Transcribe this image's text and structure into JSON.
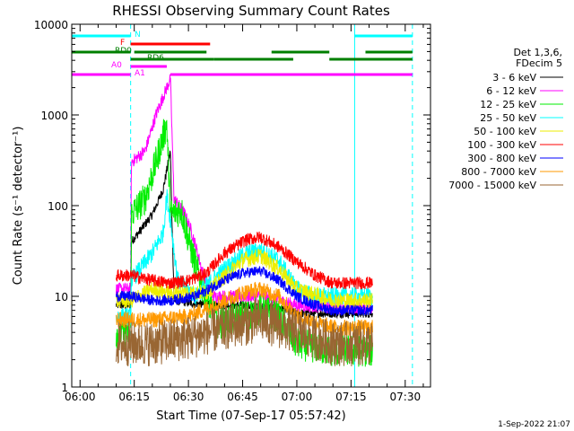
{
  "chart_data": {
    "type": "line",
    "title": "RHESSI Observing Summary Count Rates",
    "xlabel": "Start Time (07-Sep-17 05:57:42)",
    "ylabel": "Count Rate (s⁻¹ detector⁻¹)",
    "yscale": "log",
    "ylim": [
      1,
      10000
    ],
    "xlim": [
      "05:57:42",
      "07:37:00"
    ],
    "x_ticks": [
      "06:00",
      "06:15",
      "06:30",
      "06:45",
      "07:00",
      "07:15",
      "07:30"
    ],
    "y_ticks": [
      "1",
      "10",
      "100",
      "1000",
      "10000"
    ],
    "timestamp": "1-Sep-2022 21:07",
    "legend": {
      "position": "right",
      "header": [
        "Det 1,3,6,",
        "FDecim 5"
      ],
      "entries": [
        {
          "label": "3 - 6 keV",
          "color": "#000000"
        },
        {
          "label": "6 - 12 keV",
          "color": "#ff00ff"
        },
        {
          "label": "12 - 25 keV",
          "color": "#00ee00"
        },
        {
          "label": "25 - 50 keV",
          "color": "#00ffff"
        },
        {
          "label": "50 - 100 keV",
          "color": "#eeee00"
        },
        {
          "label": "100 - 300 keV",
          "color": "#ff0000"
        },
        {
          "label": "300 - 800 keV",
          "color": "#0000ff"
        },
        {
          "label": "800 - 7000 keV",
          "color": "#ff9900"
        },
        {
          "label": "7000 - 15000 keV",
          "color": "#996633"
        }
      ]
    },
    "flags": [
      {
        "label": "N",
        "color": "#00ffff",
        "segments": [
          [
            "05:57:42",
            "06:14:00"
          ],
          [
            "07:16:00",
            "07:32:00"
          ]
        ]
      },
      {
        "label": "F",
        "color": "#ff0000",
        "segments": [
          [
            "06:14:00",
            "06:36:00"
          ]
        ]
      },
      {
        "label": "RD0",
        "color": "#007f00",
        "segments": [
          [
            "05:57:42",
            "06:14:00"
          ],
          [
            "06:15:00",
            "06:35:00"
          ],
          [
            "06:53:00",
            "07:09:00"
          ],
          [
            "07:19:00",
            "07:32:00"
          ]
        ]
      },
      {
        "label": "RD6",
        "color": "#007f00",
        "segments": [
          [
            "06:14:00",
            "06:37:00"
          ],
          [
            "06:37:00",
            "06:59:00"
          ],
          [
            "07:09:00",
            "07:32:00"
          ]
        ]
      },
      {
        "label": "A0",
        "color": "#ff00ff",
        "segments": [
          [
            "06:14:00",
            "06:24:00"
          ]
        ]
      },
      {
        "label": "A1",
        "color": "#ff00ff",
        "segments": [
          [
            "05:57:42",
            "06:14:00"
          ],
          [
            "06:25:00",
            "07:32:00"
          ]
        ]
      }
    ],
    "night_markers": [
      {
        "time": "05:57:42",
        "style": "solid"
      },
      {
        "time": "06:14:00",
        "style": "dashed"
      },
      {
        "time": "07:16:00",
        "style": "solid"
      },
      {
        "time": "07:32:00",
        "style": "dashed"
      }
    ],
    "data_window": [
      "06:10:00",
      "07:21:00"
    ],
    "series": [
      {
        "name": "3 - 6 keV",
        "color": "#000000",
        "points": [
          [
            "06:10",
            8
          ],
          [
            "06:14",
            8
          ],
          [
            "06:14.2",
            40
          ],
          [
            "06:17",
            55
          ],
          [
            "06:20",
            80
          ],
          [
            "06:23",
            150
          ],
          [
            "06:25",
            400
          ],
          [
            "06:26",
            9
          ],
          [
            "06:35",
            8
          ],
          [
            "06:45",
            8
          ],
          [
            "06:50",
            7.5
          ],
          [
            "06:55",
            7.5
          ],
          [
            "07:00",
            6.5
          ],
          [
            "07:10",
            6.5
          ],
          [
            "07:21",
            6.5
          ]
        ]
      },
      {
        "name": "6 - 12 keV",
        "color": "#ff00ff",
        "points": [
          [
            "06:10",
            12
          ],
          [
            "06:14",
            12
          ],
          [
            "06:14.2",
            300
          ],
          [
            "06:18",
            400
          ],
          [
            "06:21",
            1000
          ],
          [
            "06:24",
            2000
          ],
          [
            "06:25",
            2500
          ],
          [
            "06:26",
            120
          ],
          [
            "06:29",
            80
          ],
          [
            "06:31",
            50
          ],
          [
            "06:34",
            18
          ],
          [
            "06:37",
            10
          ],
          [
            "06:50",
            10
          ],
          [
            "07:00",
            8
          ],
          [
            "07:10",
            7.5
          ],
          [
            "07:21",
            7.5
          ]
        ]
      },
      {
        "name": "12 - 25 keV",
        "color": "#00ee00",
        "points": [
          [
            "06:10",
            4
          ],
          [
            "06:14",
            4
          ],
          [
            "06:14.2",
            80
          ],
          [
            "06:18",
            120
          ],
          [
            "06:21",
            300
          ],
          [
            "06:24",
            800
          ],
          [
            "06:25",
            80
          ],
          [
            "06:28",
            90
          ],
          [
            "06:31",
            30
          ],
          [
            "06:34",
            12
          ],
          [
            "06:38",
            5
          ],
          [
            "06:45",
            6
          ],
          [
            "06:50",
            7
          ],
          [
            "06:55",
            6
          ],
          [
            "07:00",
            3
          ],
          [
            "07:10",
            2.5
          ],
          [
            "07:21",
            2.5
          ]
        ]
      },
      {
        "name": "25 - 50 keV",
        "color": "#00ffff",
        "points": [
          [
            "06:10",
            6
          ],
          [
            "06:14",
            6
          ],
          [
            "06:14.2",
            15
          ],
          [
            "06:20",
            30
          ],
          [
            "06:23",
            50
          ],
          [
            "06:24",
            130
          ],
          [
            "06:25",
            70
          ],
          [
            "06:27",
            15
          ],
          [
            "06:32",
            10
          ],
          [
            "06:40",
            20
          ],
          [
            "06:46",
            30
          ],
          [
            "06:50",
            32
          ],
          [
            "06:55",
            25
          ],
          [
            "07:00",
            12
          ],
          [
            "07:05",
            10
          ],
          [
            "07:10",
            10
          ],
          [
            "07:21",
            10
          ]
        ]
      },
      {
        "name": "50 - 100 keV",
        "color": "#eeee00",
        "points": [
          [
            "06:10",
            9
          ],
          [
            "06:14",
            9
          ],
          [
            "06:20",
            12
          ],
          [
            "06:25",
            11
          ],
          [
            "06:35",
            11
          ],
          [
            "06:45",
            25
          ],
          [
            "06:50",
            28
          ],
          [
            "06:55",
            20
          ],
          [
            "07:00",
            12
          ],
          [
            "07:10",
            9
          ],
          [
            "07:21",
            9
          ]
        ]
      },
      {
        "name": "100 - 300 keV",
        "color": "#ff0000",
        "points": [
          [
            "06:10",
            17
          ],
          [
            "06:14",
            17
          ],
          [
            "06:20",
            15
          ],
          [
            "06:25",
            14
          ],
          [
            "06:30",
            15
          ],
          [
            "06:35",
            18
          ],
          [
            "06:40",
            30
          ],
          [
            "06:46",
            42
          ],
          [
            "06:50",
            45
          ],
          [
            "06:55",
            35
          ],
          [
            "07:00",
            24
          ],
          [
            "07:05",
            17
          ],
          [
            "07:10",
            14
          ],
          [
            "07:21",
            14
          ]
        ]
      },
      {
        "name": "300 - 800 keV",
        "color": "#0000ff",
        "points": [
          [
            "06:10",
            10
          ],
          [
            "06:14",
            10
          ],
          [
            "06:20",
            9
          ],
          [
            "06:25",
            9
          ],
          [
            "06:32",
            10
          ],
          [
            "06:40",
            15
          ],
          [
            "06:45",
            18
          ],
          [
            "06:50",
            19
          ],
          [
            "06:55",
            15
          ],
          [
            "07:00",
            10
          ],
          [
            "07:05",
            8
          ],
          [
            "07:10",
            7
          ],
          [
            "07:21",
            7
          ]
        ]
      },
      {
        "name": "800 - 7000 keV",
        "color": "#ff9900",
        "points": [
          [
            "06:10",
            5.5
          ],
          [
            "06:14",
            5.5
          ],
          [
            "06:20",
            5.5
          ],
          [
            "06:30",
            6
          ],
          [
            "06:40",
            9
          ],
          [
            "06:45",
            11
          ],
          [
            "06:50",
            12
          ],
          [
            "06:55",
            10
          ],
          [
            "07:00",
            6
          ],
          [
            "07:10",
            4.5
          ],
          [
            "07:21",
            4.5
          ]
        ]
      },
      {
        "name": "7000 - 15000 keV",
        "color": "#996633",
        "points": [
          [
            "06:10",
            3
          ],
          [
            "06:14",
            3
          ],
          [
            "06:20",
            3
          ],
          [
            "06:30",
            3.5
          ],
          [
            "06:40",
            4.5
          ],
          [
            "06:50",
            5.5
          ],
          [
            "07:00",
            4
          ],
          [
            "07:10",
            3
          ],
          [
            "07:21",
            3
          ]
        ]
      }
    ]
  }
}
